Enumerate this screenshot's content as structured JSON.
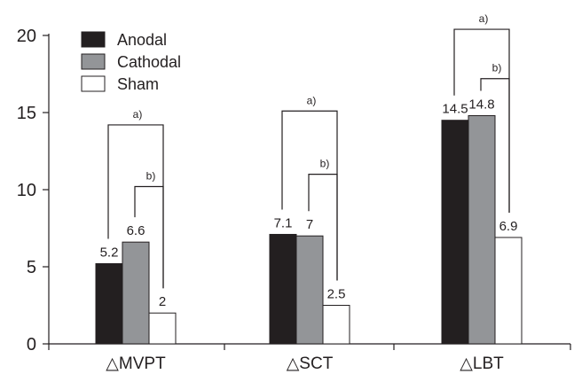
{
  "chart_data": {
    "type": "bar",
    "title": "",
    "xlabel": "",
    "ylabel": "",
    "ylim": [
      0,
      20
    ],
    "yticks": [
      0,
      5,
      10,
      15,
      20
    ],
    "categories": [
      "△MVPT",
      "△SCT",
      "△LBT"
    ],
    "series": [
      {
        "name": "Anodal",
        "color": "#231f20",
        "values": [
          5.2,
          7.1,
          14.5
        ],
        "labels": [
          "5.2",
          "7.1",
          "14.5"
        ]
      },
      {
        "name": "Cathodal",
        "color": "#939598",
        "values": [
          6.6,
          7,
          14.8
        ],
        "labels": [
          "6.6",
          "7",
          "14.8"
        ]
      },
      {
        "name": "Sham",
        "color": "#ffffff",
        "values": [
          2,
          2.5,
          6.9
        ],
        "labels": [
          "2",
          "2.5",
          "6.9"
        ]
      }
    ],
    "legend": {
      "position": "top-left"
    },
    "grid": false,
    "significance": [
      {
        "category": 0,
        "from": "Anodal",
        "to": "Sham",
        "label": "a)",
        "level": 14.2
      },
      {
        "category": 0,
        "from": "Cathodal",
        "to": "Sham",
        "label": "b)",
        "level": 10.2
      },
      {
        "category": 1,
        "from": "Anodal",
        "to": "Sham",
        "label": "a)",
        "level": 15.1
      },
      {
        "category": 1,
        "from": "Cathodal",
        "to": "Sham",
        "label": "b)",
        "level": 11.0
      },
      {
        "category": 2,
        "from": "Anodal",
        "to": "Sham",
        "label": "a)",
        "level": 20.4
      },
      {
        "category": 2,
        "from": "Cathodal",
        "to": "Sham",
        "label": "b)",
        "level": 17.2
      }
    ]
  }
}
